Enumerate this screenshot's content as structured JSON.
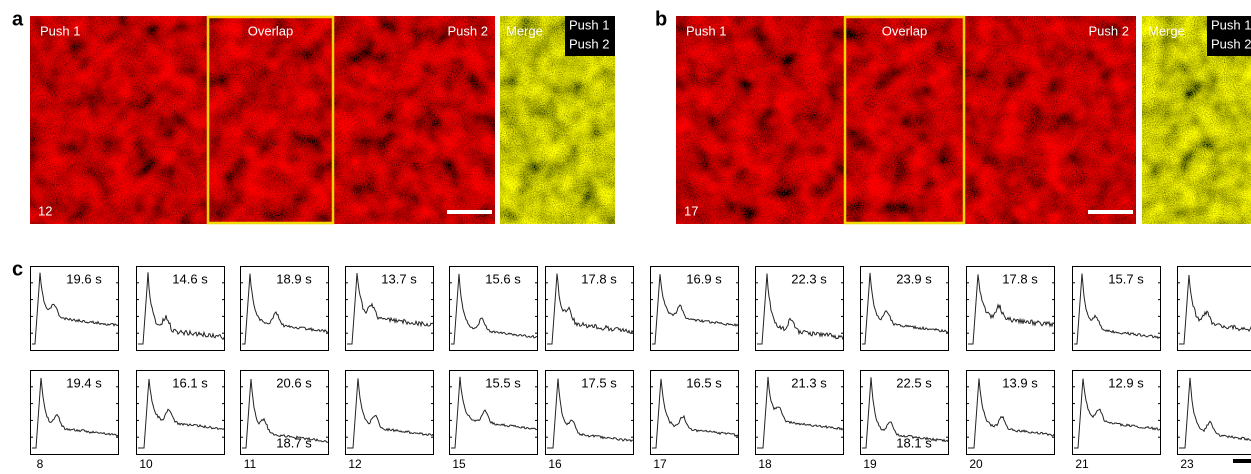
{
  "panels": [
    {
      "label": "a",
      "number": "12",
      "images": {
        "left": "Push 1",
        "overlap": "Overlap",
        "right": "Push 2",
        "merge": "Merge"
      },
      "legend": [
        "Push 1",
        "Push 2"
      ]
    },
    {
      "label": "b",
      "number": "17",
      "images": {
        "left": "Push 1",
        "overlap": "Overlap",
        "right": "Push 2",
        "merge": "Merge"
      },
      "legend": [
        "Push 1",
        "Push 2"
      ]
    }
  ],
  "traces": {
    "label": "c",
    "columns": [
      {
        "label": "8",
        "top": "19.6 s",
        "bottom": "19.4 s",
        "bottom_extra": null
      },
      {
        "label": "10",
        "top": "14.6 s",
        "bottom": "16.1 s",
        "bottom_extra": null
      },
      {
        "label": "11",
        "top": "18.9 s",
        "bottom": "20.6 s",
        "bottom_extra": "18.7 s"
      },
      {
        "label": "12",
        "top": "13.7 s",
        "bottom": null,
        "bottom_extra": null
      },
      {
        "label": "15",
        "top": "15.6 s",
        "bottom": "15.5 s",
        "bottom_extra": null
      },
      {
        "label": "16",
        "top": "17.8 s",
        "bottom": "17.5 s",
        "bottom_extra": null
      },
      {
        "label": "17",
        "top": "16.9 s",
        "bottom": "16.5 s",
        "bottom_extra": null
      },
      {
        "label": "18",
        "top": "22.3 s",
        "bottom": "21.3 s",
        "bottom_extra": null
      },
      {
        "label": "19",
        "top": "23.9 s",
        "bottom": "22.5 s",
        "bottom_extra": "18.1 s"
      },
      {
        "label": "20",
        "top": "17.8 s",
        "bottom": "13.9 s",
        "bottom_extra": null
      },
      {
        "label": "21",
        "top": "15.7 s",
        "bottom": "12.9 s",
        "bottom_extra": null
      },
      {
        "label": "23",
        "top": null,
        "bottom": null,
        "bottom_extra": null
      }
    ]
  }
}
